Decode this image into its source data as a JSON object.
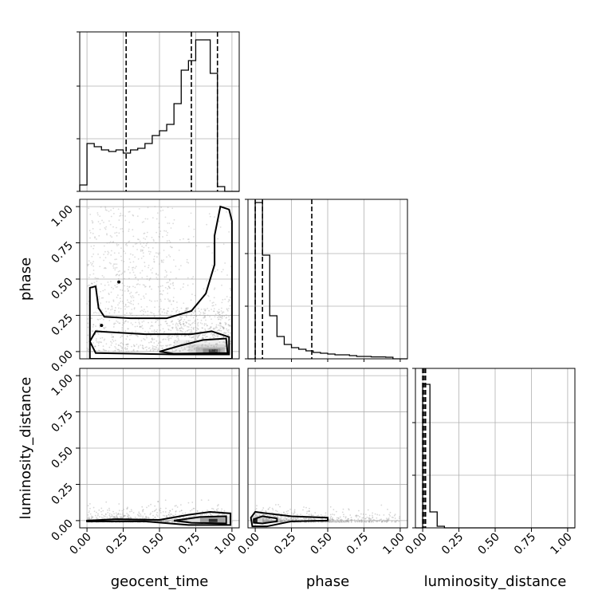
{
  "chart_data": {
    "type": "corner",
    "parameters": [
      "geocent_time",
      "phase",
      "luminosity_distance"
    ],
    "tick_labels": [
      "0.00",
      "0.25",
      "0.50",
      "0.75",
      "1.00"
    ],
    "axis_range": [
      -0.05,
      1.05
    ],
    "grid": true,
    "colors": {
      "line": "#000000",
      "grid": "#b0b0b0",
      "points": "#9a9a9a"
    },
    "histograms": [
      {
        "parameter": "geocent_time",
        "bin_edges": [
          -0.05,
          0.0,
          0.05,
          0.1,
          0.15,
          0.2,
          0.25,
          0.3,
          0.35,
          0.4,
          0.45,
          0.5,
          0.55,
          0.6,
          0.65,
          0.7,
          0.75,
          0.8,
          0.85,
          0.9,
          0.95,
          1.0,
          1.05
        ],
        "counts": [
          0.04,
          0.3,
          0.28,
          0.26,
          0.25,
          0.26,
          0.24,
          0.26,
          0.27,
          0.3,
          0.35,
          0.38,
          0.42,
          0.55,
          0.76,
          0.82,
          0.95,
          0.95,
          0.74,
          0.03,
          0.0,
          0.0
        ],
        "quantile_lines": [
          0.27,
          0.72,
          0.9
        ]
      },
      {
        "parameter": "phase",
        "bin_edges": [
          -0.05,
          0.0,
          0.05,
          0.1,
          0.15,
          0.2,
          0.25,
          0.3,
          0.35,
          0.4,
          0.45,
          0.5,
          0.55,
          0.6,
          0.65,
          0.7,
          0.75,
          0.8,
          0.85,
          0.9,
          0.95,
          1.0,
          1.05
        ],
        "counts": [
          0.0,
          0.98,
          0.65,
          0.27,
          0.14,
          0.09,
          0.07,
          0.06,
          0.05,
          0.04,
          0.035,
          0.03,
          0.025,
          0.025,
          0.02,
          0.015,
          0.015,
          0.012,
          0.012,
          0.01,
          0.0,
          0.0
        ],
        "quantile_lines": [
          0.0,
          0.05,
          0.39
        ]
      },
      {
        "parameter": "luminosity_distance",
        "bin_edges": [
          -0.05,
          0.0,
          0.05,
          0.1,
          0.15,
          0.2,
          0.25,
          0.3,
          0.35,
          0.4,
          0.45,
          0.5,
          0.55,
          0.6,
          0.65,
          0.7,
          0.75,
          0.8,
          0.85,
          0.9,
          0.95,
          1.0,
          1.05
        ],
        "counts": [
          0.0,
          0.9,
          0.1,
          0.01,
          0.0,
          0.0,
          0.0,
          0.0,
          0.0,
          0.0,
          0.0,
          0.0,
          0.0,
          0.0,
          0.0,
          0.0,
          0.0,
          0.0,
          0.0,
          0.0,
          0.0,
          0.0
        ],
        "quantile_lines": [
          0.0,
          0.01,
          0.02
        ]
      }
    ],
    "joint_panels": [
      {
        "x": "geocent_time",
        "y": "phase"
      },
      {
        "x": "geocent_time",
        "y": "luminosity_distance"
      },
      {
        "x": "phase",
        "y": "luminosity_distance"
      }
    ]
  }
}
